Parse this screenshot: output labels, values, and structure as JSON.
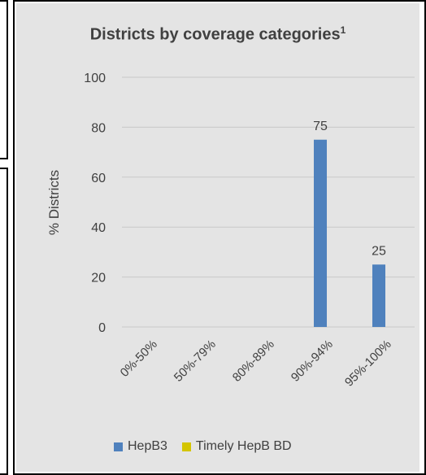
{
  "chart_data": {
    "type": "bar",
    "title": "Districts by coverage categories",
    "title_sup": "1",
    "ylabel": "% Districts",
    "xlabel": "",
    "ylim": [
      0,
      100
    ],
    "yticks": [
      0,
      20,
      40,
      60,
      80,
      100
    ],
    "categories": [
      "0%-50%",
      "50%-79%",
      "80%-89%",
      "90%-94%",
      "95%-100%"
    ],
    "series": [
      {
        "name": "HepB3",
        "color": "#4f81bd",
        "values": [
          0,
          0,
          0,
          75,
          25
        ]
      },
      {
        "name": "Timely HepB BD",
        "color": "#d4c500",
        "values": [
          0,
          0,
          0,
          0,
          0
        ]
      }
    ],
    "data_labels": [
      null,
      null,
      null,
      "75",
      "25"
    ],
    "grid": true,
    "legend_position": "bottom"
  }
}
